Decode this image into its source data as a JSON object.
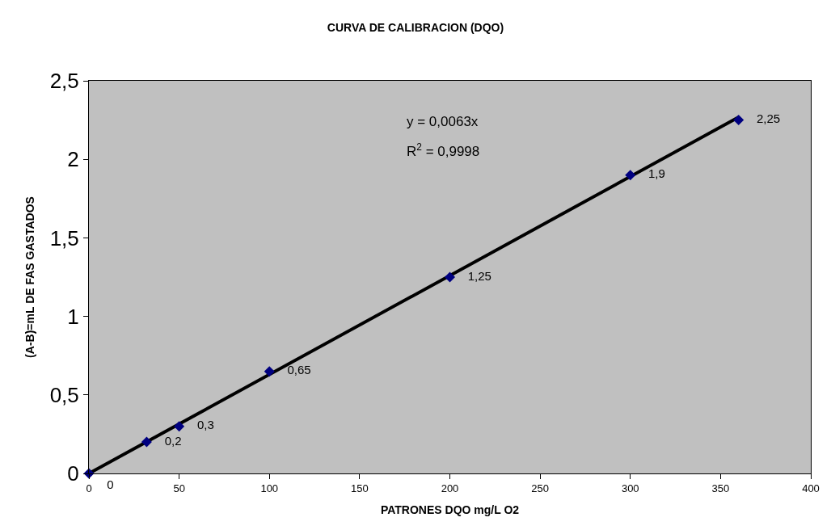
{
  "chart_data": {
    "type": "scatter",
    "title": "CURVA DE CALIBRACION (DQO)",
    "xlabel": "PATRONES DQO mg/L O2",
    "ylabel": "(A-B)=mL DE FAS GASTADOS",
    "series": [
      {
        "type": "scatter",
        "color": "#000080",
        "marker": "diamond",
        "x": [
          0,
          32,
          50,
          100,
          200,
          300,
          360
        ],
        "values": [
          0,
          0.2,
          0.3,
          0.65,
          1.25,
          1.9,
          2.25
        ],
        "value_labels": [
          "0",
          "0,2",
          "0,3",
          "0,65",
          "1,25",
          "1,9",
          "2,25"
        ]
      },
      {
        "type": "line",
        "color": "#000000",
        "line_style": "solid",
        "x": [
          0,
          360
        ],
        "values": [
          0,
          2.268
        ]
      }
    ],
    "annotations": [
      "y = 0,0063x",
      "R$^{2}$ = 0,9998"
    ],
    "xlim": [
      0,
      400
    ],
    "xticks": [
      0,
      50,
      100,
      150,
      200,
      250,
      300,
      350,
      400
    ],
    "ylim": [
      0,
      2.5
    ],
    "yticks": [
      0,
      {
        "value": 0.5,
        "label": "0,5"
      },
      1,
      {
        "value": 1.5,
        "label": "1,5"
      },
      2,
      {
        "value": 2.5,
        "label": "2,5"
      }
    ]
  }
}
